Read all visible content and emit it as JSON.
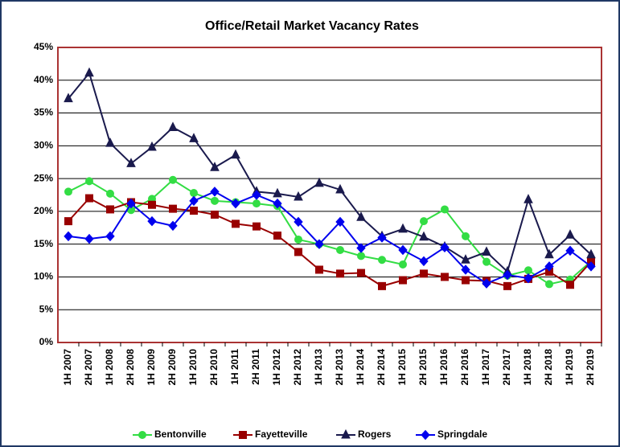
{
  "chart_data": {
    "type": "line",
    "title": "Office/Retail Market Vacancy Rates",
    "categories": [
      "1H 2007",
      "2H 2007",
      "1H 2008",
      "2H 2008",
      "1H 2009",
      "2H 2009",
      "1H 2010",
      "2H 2010",
      "1H 2011",
      "2H 2011",
      "1H 2012",
      "2H 2012",
      "1H 2013",
      "2H 2013",
      "1H 2014",
      "2H 2014",
      "1H 2015",
      "2H 2015",
      "1H 2016",
      "2H 2016",
      "1H 2017",
      "2H 2017",
      "1H 2018",
      "2H 2018",
      "1H 2019",
      "2H 2019"
    ],
    "series": [
      {
        "name": "Bentonville",
        "color": "#33dd44",
        "marker": "circle",
        "values": [
          23.0,
          24.6,
          22.7,
          20.2,
          21.9,
          24.8,
          22.8,
          21.6,
          21.4,
          21.2,
          20.8,
          15.7,
          15.0,
          14.1,
          13.2,
          12.6,
          11.9,
          18.5,
          20.3,
          16.2,
          12.3,
          10.2,
          11.0,
          8.9,
          9.6,
          12.4
        ]
      },
      {
        "name": "Fayetteville",
        "color": "#990000",
        "marker": "square",
        "values": [
          18.5,
          22.0,
          20.3,
          21.4,
          21.0,
          20.4,
          20.1,
          19.5,
          18.1,
          17.7,
          16.3,
          13.8,
          11.1,
          10.5,
          10.6,
          8.6,
          9.5,
          10.5,
          10.0,
          9.5,
          9.4,
          8.6,
          9.7,
          10.8,
          8.8,
          12.3
        ]
      },
      {
        "name": "Rogers",
        "color": "#1a1a4d",
        "marker": "triangle",
        "values": [
          37.2,
          41.1,
          30.4,
          27.3,
          29.8,
          32.8,
          31.1,
          26.7,
          28.6,
          23.0,
          22.7,
          22.2,
          24.3,
          23.3,
          19.1,
          16.2,
          17.3,
          16.1,
          14.6,
          12.6,
          13.8,
          10.8,
          21.8,
          13.4,
          16.4,
          13.4
        ]
      },
      {
        "name": "Springdale",
        "color": "#0000ee",
        "marker": "diamond",
        "values": [
          16.2,
          15.8,
          16.2,
          21.2,
          18.5,
          17.8,
          21.6,
          23.0,
          21.2,
          22.5,
          21.2,
          18.4,
          15.0,
          18.4,
          14.4,
          16.0,
          14.1,
          12.4,
          14.5,
          11.1,
          9.0,
          10.3,
          9.8,
          11.6,
          14.0,
          11.6
        ]
      }
    ],
    "ylim": [
      0,
      45
    ],
    "yticks": [
      {
        "value": 0,
        "label": "0%"
      },
      {
        "value": 5,
        "label": "5%"
      },
      {
        "value": 10,
        "label": "10%"
      },
      {
        "value": 15,
        "label": "15%"
      },
      {
        "value": 20,
        "label": "20%"
      },
      {
        "value": 25,
        "label": "25%"
      },
      {
        "value": 30,
        "label": "30%"
      },
      {
        "value": 35,
        "label": "35%"
      },
      {
        "value": 40,
        "label": "40%"
      },
      {
        "value": 45,
        "label": "45%"
      }
    ],
    "grid": true,
    "legend": "bottom"
  }
}
